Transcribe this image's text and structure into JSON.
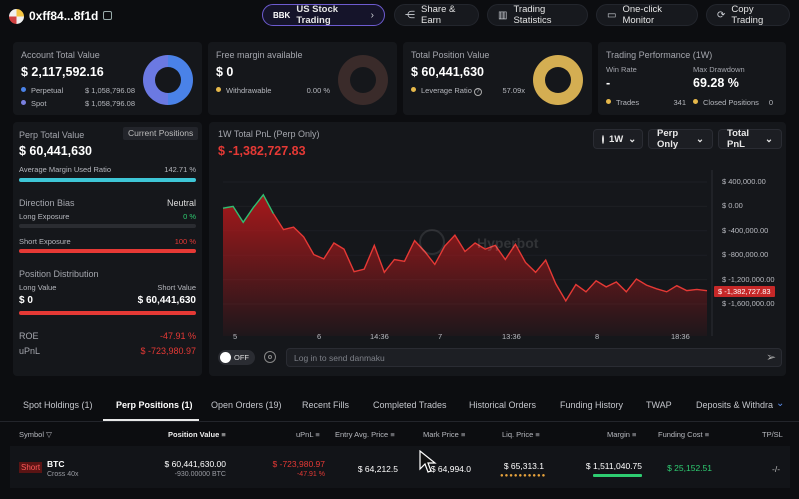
{
  "header": {
    "wallet": "0xff84...8f1d",
    "buttons": [
      "US Stock Trading",
      "Share & Earn",
      "Trading Statistics",
      "One-click Monitor",
      "Copy Trading"
    ],
    "stock_icon": "BBK"
  },
  "account": {
    "title": "Account Total Value",
    "value": "$ 2,117,592.16",
    "rows": [
      {
        "label": "Perpetual",
        "value": "$ 1,058,796.08"
      },
      {
        "label": "Spot",
        "value": "$ 1,058,796.08"
      }
    ],
    "colors": [
      "#4a82e8",
      "#7a80e0"
    ]
  },
  "free_margin": {
    "title": "Free margin available",
    "value": "$ 0",
    "row_label": "Withdrawable",
    "row_value": "0.00 %"
  },
  "position_value": {
    "title": "Total Position Value",
    "value": "$ 60,441,630",
    "row_label": "Leverage Ratio",
    "row_value": "57.09x"
  },
  "performance": {
    "title": "Trading Performance (1W)",
    "win_rate_label": "Win Rate",
    "win_rate": "-",
    "drawdown_label": "Max Drawdown",
    "drawdown": "69.28 %",
    "trades_label": "Trades",
    "trades": "341",
    "closed_label": "Closed Positions",
    "closed": "0"
  },
  "perp": {
    "title": "Perp Total Value",
    "badge": "Current Positions",
    "value": "$ 60,441,630",
    "margin_label": "Average Margin Used Ratio",
    "margin_value": "142.71 %",
    "margin_fill": 1.0,
    "direction_label": "Direction Bias",
    "direction_value": "Neutral",
    "long_label": "Long Exposure",
    "long_value": "0 %",
    "long_fill": 0.0,
    "short_label": "Short Exposure",
    "short_value": "100 %",
    "short_fill": 1.0,
    "dist_label": "Position Distribution",
    "long_val_label": "Long Value",
    "short_val_label": "Short Value",
    "long_val": "$ 0",
    "short_val": "$ 60,441,630",
    "short_dist_fill": 1.0,
    "roe_label": "ROE",
    "roe": "-47.91 %",
    "upnl_label": "uPnL",
    "upnl": "$ -723,980.97"
  },
  "chart_panel": {
    "title": "1W Total PnL (Perp Only)",
    "value": "$ -1,382,727.83",
    "controls": [
      "1W",
      "Perp Only",
      "Total PnL"
    ],
    "watermark": "Hyperbot",
    "toggle": "OFF",
    "danmaku_placeholder": "Log in to send danmaku",
    "current_label": "$ -1,382,727.83"
  },
  "chart_data": {
    "type": "area",
    "x_ticks": [
      "5",
      "6",
      "14:36",
      "7",
      "13:36",
      "8",
      "18:36"
    ],
    "y_ticks": [
      "$ 400,000.00",
      "$ 0.00",
      "$ -400,000.00",
      "$ -800,000.00",
      "$ -1,200,000.00",
      "$ -1,600,000.00"
    ],
    "ylim": [
      -1600000,
      400000
    ],
    "x": [
      0,
      0.5,
      1,
      1.5,
      2,
      2.5,
      3,
      3.5,
      4,
      4.5,
      5,
      5.5,
      6,
      6.5,
      7,
      7.5,
      8,
      8.5,
      9,
      9.5,
      10,
      10.5,
      11,
      11.5,
      12,
      12.5,
      13,
      13.5,
      14,
      14.5,
      15,
      15.5,
      16,
      16.5,
      17,
      17.5,
      18,
      18.5,
      19,
      19.5,
      20,
      20.5,
      21,
      21.5,
      22,
      22.5,
      23,
      23.5,
      24
    ],
    "values": [
      -30000,
      0,
      -260000,
      -20000,
      190000,
      -120000,
      -380000,
      -340000,
      -500000,
      -790000,
      -860000,
      -600000,
      -700000,
      -1070000,
      -1030000,
      -640000,
      -1080000,
      -870000,
      -900000,
      -560000,
      -740000,
      -950000,
      -650000,
      -470000,
      -740000,
      -600000,
      -700000,
      -640000,
      -870000,
      -620000,
      -920000,
      -1080000,
      -880000,
      -1270000,
      -1550000,
      -1280000,
      -1400000,
      -1220000,
      -1320000,
      -1240000,
      -1400000,
      -1190000,
      -1290000,
      -1350000,
      -1400000,
      -1300000,
      -1380000,
      -1360000,
      -1382727.83
    ],
    "green_until_index": 5,
    "colors": {
      "up": "#2fbf71",
      "down": "#e53935",
      "area": "#c0181b"
    }
  },
  "tabs": [
    "Spot Holdings (1)",
    "Perp Positions (1)",
    "Open Orders (19)",
    "Recent Fills",
    "Completed Trades",
    "Historical Orders",
    "Funding History",
    "TWAP",
    "Deposits & Withdra"
  ],
  "active_tab": "Perp Positions (1)",
  "table": {
    "headers": [
      "Symbol",
      "Position Value",
      "uPnL",
      "Entry Avg. Price",
      "Mark Price",
      "Liq. Price",
      "Margin",
      "Funding Cost",
      "TP/SL"
    ],
    "row": {
      "side": "Short",
      "symbol": "BTC",
      "leverage": "Cross 40x",
      "value": "$ 60,441,630.00",
      "size": "-930.00000 BTC",
      "upnl": "$ -723,980.97",
      "upnl_pct": "-47.91 %",
      "entry": "$ 64,212.5",
      "mark": "$ 64,994.0",
      "liq": "$ 65,313.1",
      "margin": "$ 1,511,040.75",
      "funding": "$ 25,152.51",
      "tpsl": "-/-"
    }
  }
}
